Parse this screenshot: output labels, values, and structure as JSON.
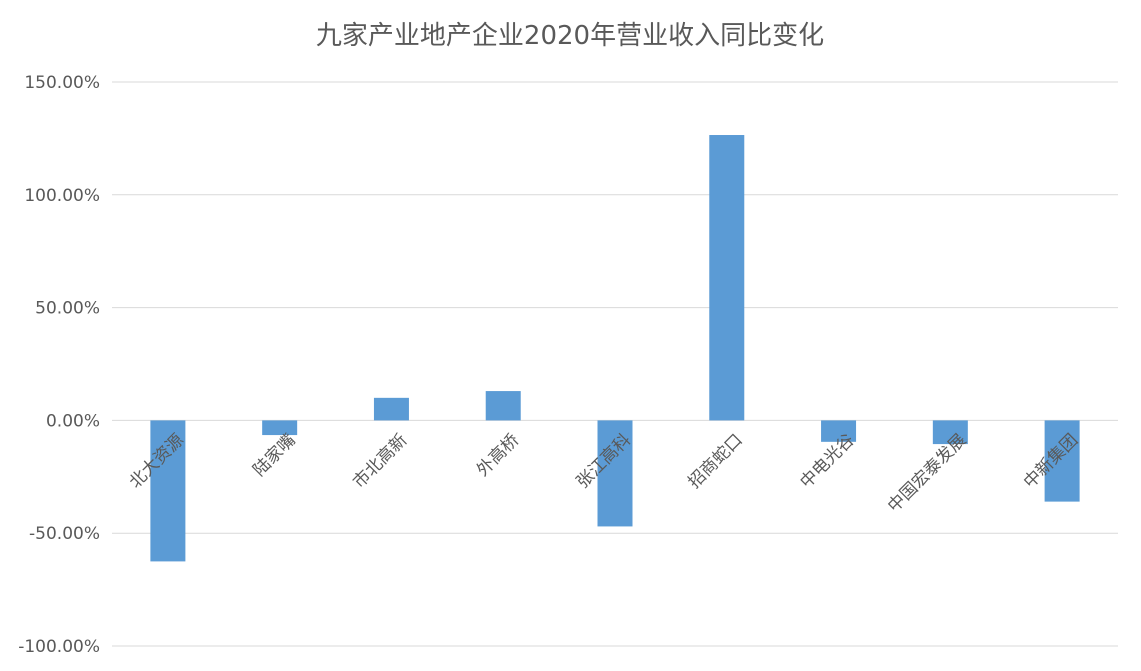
{
  "chart_data": {
    "type": "bar",
    "title": "九家产业地产企业2020年营业收入同比变化",
    "xlabel": "",
    "ylabel": "",
    "categories": [
      "北大资源",
      "陆家嘴",
      "市北高新",
      "外高桥",
      "张江高科",
      "招商蛇口",
      "中电光谷",
      "中国宏泰发展",
      "中新集团"
    ],
    "values": [
      -62.5,
      -6.5,
      10.0,
      13.0,
      -47.0,
      126.5,
      -9.5,
      -10.5,
      -36.0
    ],
    "value_format": "percent_2dp",
    "ylim": [
      -100,
      150
    ],
    "yticks": [
      150,
      100,
      50,
      0,
      -50,
      -100
    ],
    "ytick_labels": [
      "150.00%",
      "100.00%",
      "50.00%",
      "0.00%",
      "-50.00%",
      "-100.00%"
    ],
    "grid": true,
    "legend": "none",
    "colors": {
      "bar": "#5B9BD5",
      "grid": "#D9D9D9",
      "text": "#595959"
    }
  }
}
